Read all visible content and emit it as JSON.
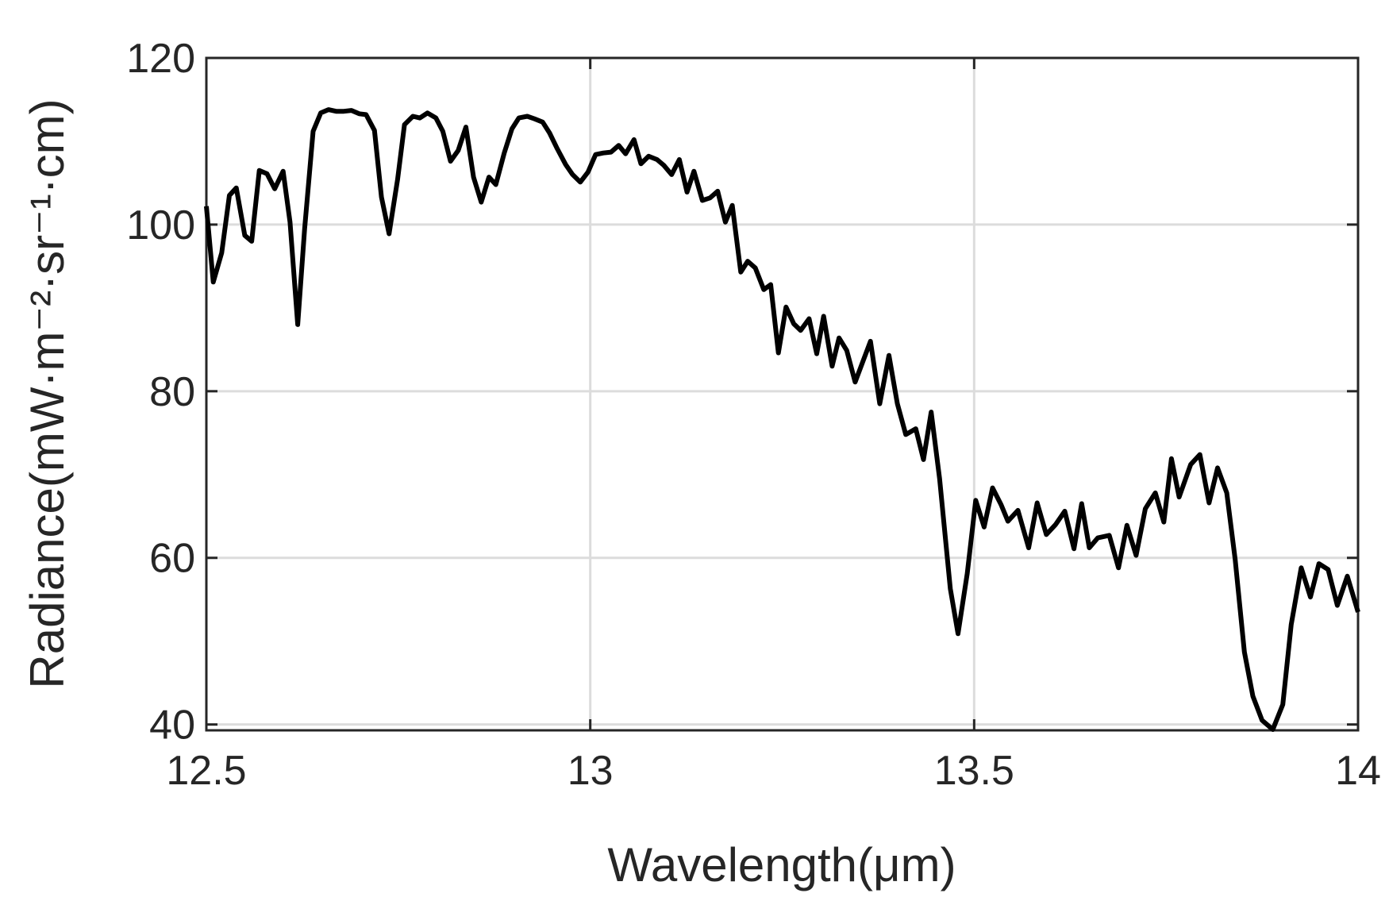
{
  "chart_data": {
    "type": "line",
    "x_label": "Wavelength(μm)",
    "y_label": "Radiance(mW·m⁻²·sr⁻¹·cm)",
    "xlim": [
      12.5,
      14
    ],
    "ylim": [
      39.3,
      120
    ],
    "xticks": [
      12.5,
      13,
      13.5,
      14
    ],
    "yticks": [
      40,
      60,
      80,
      100,
      120
    ],
    "grid": true,
    "x": [
      12.5,
      12.509,
      12.52,
      12.53,
      12.539,
      12.55,
      12.559,
      12.569,
      12.579,
      12.589,
      12.6,
      12.609,
      12.619,
      12.628,
      12.639,
      12.649,
      12.659,
      12.669,
      12.679,
      12.689,
      12.699,
      12.708,
      12.719,
      12.728,
      12.738,
      12.749,
      12.758,
      12.769,
      12.778,
      12.788,
      12.799,
      12.808,
      12.818,
      12.828,
      12.838,
      12.848,
      12.858,
      12.868,
      12.877,
      12.888,
      12.898,
      12.907,
      12.918,
      12.927,
      12.938,
      12.947,
      12.957,
      12.968,
      12.977,
      12.987,
      12.997,
      13.007,
      13.017,
      13.027,
      13.037,
      13.046,
      13.057,
      13.066,
      13.076,
      13.087,
      13.096,
      13.106,
      13.116,
      13.126,
      13.135,
      13.146,
      13.156,
      13.166,
      13.176,
      13.185,
      13.196,
      13.205,
      13.215,
      13.226,
      13.235,
      13.245,
      13.255,
      13.265,
      13.274,
      13.285,
      13.295,
      13.304,
      13.315,
      13.324,
      13.334,
      13.345,
      13.365,
      13.377,
      13.389,
      13.4,
      13.411,
      13.424,
      13.434,
      13.444,
      13.455,
      13.469,
      13.479,
      13.491,
      13.502,
      13.513,
      13.524,
      13.535,
      13.544,
      13.557,
      13.571,
      13.582,
      13.594,
      13.606,
      13.618,
      13.63,
      13.64,
      13.65,
      13.661,
      13.676,
      13.688,
      13.699,
      13.711,
      13.723,
      13.736,
      13.747,
      13.757,
      13.767,
      13.782,
      13.794,
      13.806,
      13.817,
      13.829,
      13.84,
      13.852,
      13.863,
      13.875,
      13.889,
      13.902,
      13.913,
      13.926,
      13.938,
      13.949,
      13.961,
      13.973,
      13.986,
      14.0
    ],
    "series": [
      {
        "color": "#000000",
        "values": [
          102.2,
          93.1,
          96.6,
          103.5,
          104.4,
          98.7,
          98.0,
          106.5,
          106.1,
          104.3,
          106.4,
          100.3,
          88.0,
          99.5,
          111.2,
          113.4,
          113.8,
          113.6,
          113.6,
          113.7,
          113.3,
          113.2,
          111.3,
          103.3,
          98.9,
          105.4,
          112.0,
          113.0,
          112.8,
          113.4,
          112.8,
          111.2,
          107.6,
          108.9,
          111.7,
          105.7,
          102.7,
          105.7,
          104.8,
          108.6,
          111.5,
          112.8,
          113.0,
          112.7,
          112.3,
          111.0,
          109.1,
          107.2,
          106.0,
          105.1,
          106.3,
          108.4,
          108.6,
          108.7,
          109.5,
          108.5,
          110.2,
          107.3,
          108.2,
          107.8,
          107.1,
          106.0,
          107.8,
          103.9,
          106.4,
          102.9,
          103.2,
          104.0,
          100.3,
          102.3,
          94.3,
          95.6,
          94.8,
          92.2,
          92.8,
          84.6,
          90.1,
          88.1,
          87.3,
          88.7,
          84.5,
          89.0,
          83.0,
          86.4,
          84.9,
          81.1,
          86.0,
          78.5,
          84.3,
          78.5,
          74.8,
          75.5,
          71.8,
          77.5,
          69.5,
          56.3,
          50.9,
          58.1,
          66.9,
          63.7,
          68.4,
          66.4,
          64.4,
          65.7,
          61.2,
          66.6,
          62.8,
          64.0,
          65.6,
          61.1,
          66.5,
          61.2,
          62.4,
          62.7,
          58.8,
          63.9,
          60.3,
          65.9,
          67.8,
          64.3,
          71.9,
          67.3,
          71.2,
          72.4,
          66.6,
          70.8,
          67.8,
          59.8,
          48.7,
          43.4,
          40.5,
          39.4,
          42.4,
          52.0,
          58.8,
          55.3,
          59.3,
          58.6,
          54.3,
          57.8,
          53.5
        ]
      }
    ]
  }
}
